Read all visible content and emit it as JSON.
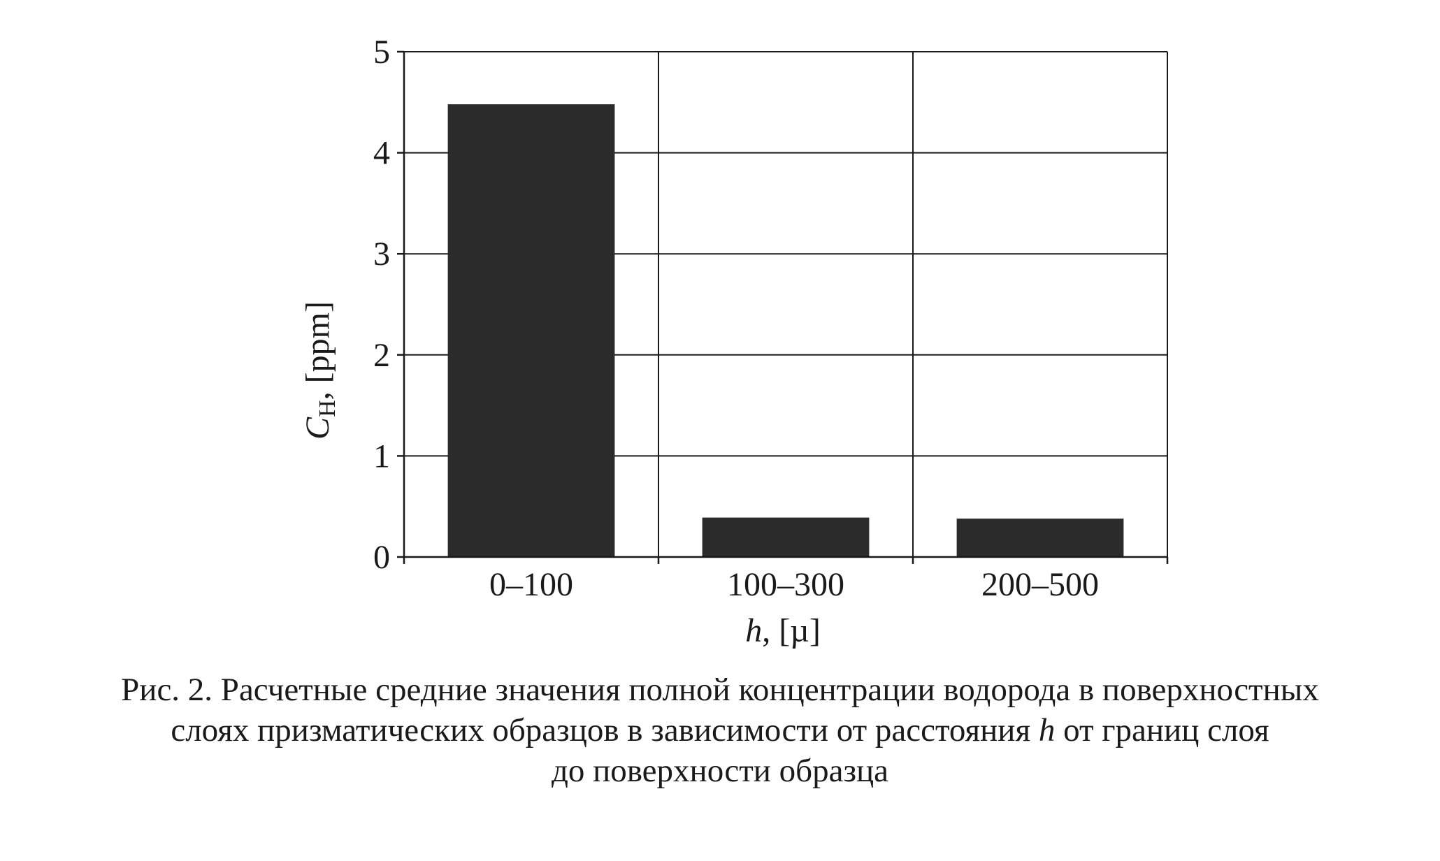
{
  "chart_data": {
    "type": "bar",
    "categories": [
      "0–100",
      "100–300",
      "200–500"
    ],
    "values": [
      4.48,
      0.39,
      0.38
    ],
    "ylim": [
      0,
      5
    ],
    "yticks": [
      "0",
      "1",
      "2",
      "3",
      "4",
      "5"
    ],
    "ylabel_symbol": "C",
    "ylabel_subscript": "H",
    "ylabel_rest": ", [ppm]",
    "xlabel_symbol": "h",
    "xlabel_rest": ", [µ]",
    "grid": true,
    "bar_color": "#2b2b2b",
    "grid_color": "#1a1a1a"
  },
  "caption": {
    "line1": "Рис. 2. Расчетные средние значения полной концентрации водорода в поверхностных",
    "line2_before": "слоях призматических образцов в зависимости от расстояния ",
    "line2_italic": "h",
    "line2_after": " от границ слоя",
    "line3": "до поверхности образца"
  }
}
